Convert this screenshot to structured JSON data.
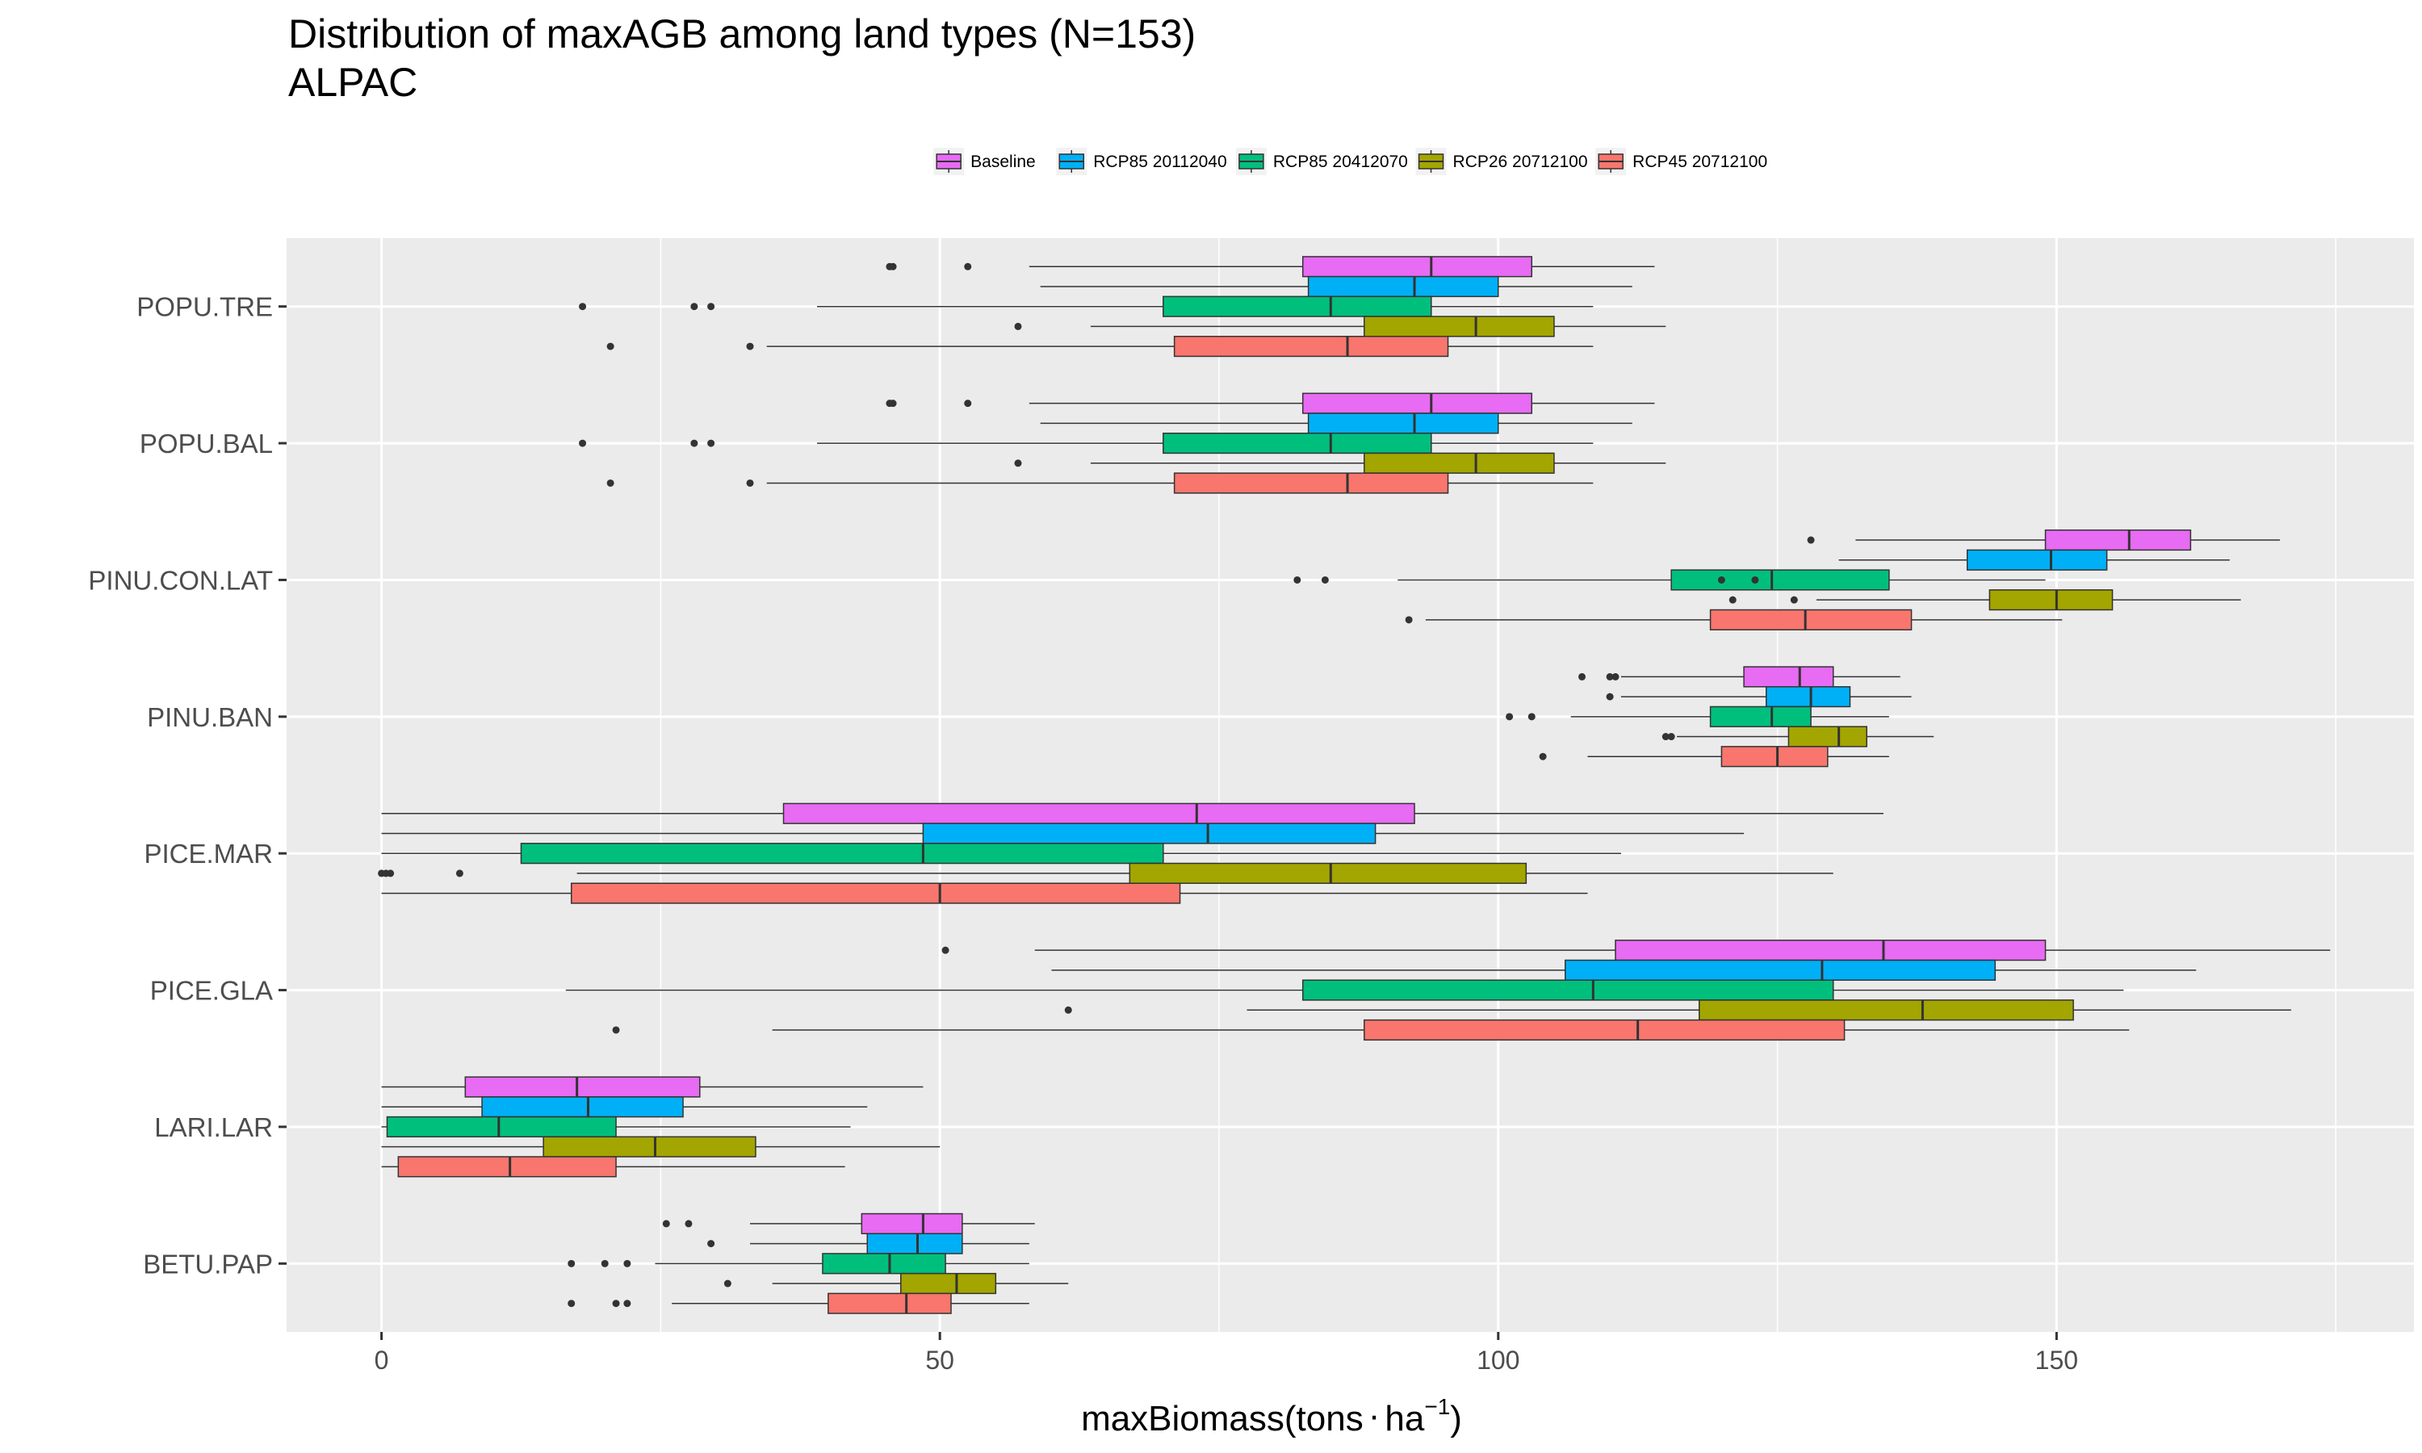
{
  "chart_data": {
    "type": "boxplot",
    "title": "Distribution of maxAGB among land types (N=153)",
    "subtitle": "ALPAC",
    "xlabel": "maxBiomass(tons",
    "xlabel_unit": "ha",
    "xlabel_exp": "−1",
    "xlabel_close": ")",
    "ylabel": "",
    "xlim": [
      -8.5,
      182
    ],
    "xticks": [
      0,
      50,
      100,
      150
    ],
    "grid": true,
    "legend_position": "top",
    "series": [
      {
        "name": "Baseline",
        "color": "#E76BF3"
      },
      {
        "name": "RCP85 20112040",
        "color": "#00B0F6"
      },
      {
        "name": "RCP85 20412070",
        "color": "#00BF7D"
      },
      {
        "name": "RCP26 20712100",
        "color": "#A3A500"
      },
      {
        "name": "RCP45 20712100",
        "color": "#F8766D"
      }
    ],
    "categories": [
      "POPU.TRE",
      "POPU.BAL",
      "PINU.CON.LAT",
      "PINU.BAN",
      "PICE.MAR",
      "PICE.GLA",
      "LARI.LAR",
      "BETU.PAP"
    ],
    "boxes": {
      "POPU.TRE": [
        {
          "wlo": 58.0,
          "q1": 82.5,
          "med": 94.0,
          "q3": 103.0,
          "whi": 114.0,
          "out": [
            45.5,
            45.8,
            52.5
          ]
        },
        {
          "wlo": 59.0,
          "q1": 83.0,
          "med": 92.5,
          "q3": 100.0,
          "whi": 112.0,
          "out": []
        },
        {
          "wlo": 39.0,
          "q1": 70.0,
          "med": 85.0,
          "q3": 94.0,
          "whi": 108.5,
          "out": [
            18.0,
            28.0,
            29.5
          ]
        },
        {
          "wlo": 63.5,
          "q1": 88.0,
          "med": 98.0,
          "q3": 105.0,
          "whi": 115.0,
          "out": [
            57.0
          ]
        },
        {
          "wlo": 34.5,
          "q1": 71.0,
          "med": 86.5,
          "q3": 95.5,
          "whi": 108.5,
          "out": [
            20.5,
            33.0
          ]
        }
      ],
      "POPU.BAL": [
        {
          "wlo": 58.0,
          "q1": 82.5,
          "med": 94.0,
          "q3": 103.0,
          "whi": 114.0,
          "out": [
            45.5,
            45.8,
            52.5
          ]
        },
        {
          "wlo": 59.0,
          "q1": 83.0,
          "med": 92.5,
          "q3": 100.0,
          "whi": 112.0,
          "out": []
        },
        {
          "wlo": 39.0,
          "q1": 70.0,
          "med": 85.0,
          "q3": 94.0,
          "whi": 108.5,
          "out": [
            18.0,
            28.0,
            29.5
          ]
        },
        {
          "wlo": 63.5,
          "q1": 88.0,
          "med": 98.0,
          "q3": 105.0,
          "whi": 115.0,
          "out": [
            57.0
          ]
        },
        {
          "wlo": 34.5,
          "q1": 71.0,
          "med": 86.5,
          "q3": 95.5,
          "whi": 108.5,
          "out": [
            20.5,
            33.0
          ]
        }
      ],
      "PINU.CON.LAT": [
        {
          "wlo": 132.0,
          "q1": 149.0,
          "med": 156.5,
          "q3": 162.0,
          "whi": 170.0,
          "out": [
            128.0
          ]
        },
        {
          "wlo": 130.5,
          "q1": 142.0,
          "med": 149.5,
          "q3": 154.5,
          "whi": 165.5,
          "out": []
        },
        {
          "wlo": 91.0,
          "q1": 115.5,
          "med": 124.5,
          "q3": 135.0,
          "whi": 149.0,
          "out": [
            82.0,
            84.5,
            120.0,
            123.0
          ]
        },
        {
          "wlo": 128.5,
          "q1": 144.0,
          "med": 150.0,
          "q3": 155.0,
          "whi": 166.5,
          "out": [
            121.0,
            126.5
          ]
        },
        {
          "wlo": 93.5,
          "q1": 119.0,
          "med": 127.5,
          "q3": 137.0,
          "whi": 150.5,
          "out": [
            92.0
          ]
        }
      ],
      "PINU.BAN": [
        {
          "wlo": 111.0,
          "q1": 122.0,
          "med": 127.0,
          "q3": 130.0,
          "whi": 136.0,
          "out": [
            107.5,
            110.0,
            110.5
          ]
        },
        {
          "wlo": 111.0,
          "q1": 124.0,
          "med": 128.0,
          "q3": 131.5,
          "whi": 137.0,
          "out": [
            110.0
          ]
        },
        {
          "wlo": 106.5,
          "q1": 119.0,
          "med": 124.5,
          "q3": 128.0,
          "whi": 135.0,
          "out": [
            101.0,
            103.0
          ]
        },
        {
          "wlo": 116.0,
          "q1": 126.0,
          "med": 130.5,
          "q3": 133.0,
          "whi": 139.0,
          "out": [
            115.0,
            115.5
          ]
        },
        {
          "wlo": 108.0,
          "q1": 120.0,
          "med": 125.0,
          "q3": 129.5,
          "whi": 135.0,
          "out": [
            104.0
          ]
        }
      ],
      "PICE.MAR": [
        {
          "wlo": 0.0,
          "q1": 36.0,
          "med": 73.0,
          "q3": 92.5,
          "whi": 134.5,
          "out": []
        },
        {
          "wlo": 0.0,
          "q1": 48.5,
          "med": 74.0,
          "q3": 89.0,
          "whi": 122.0,
          "out": []
        },
        {
          "wlo": 0.0,
          "q1": 12.5,
          "med": 48.5,
          "q3": 70.0,
          "whi": 111.0,
          "out": []
        },
        {
          "wlo": 17.5,
          "q1": 67.0,
          "med": 85.0,
          "q3": 102.5,
          "whi": 130.0,
          "out": [
            0.0,
            0.4,
            0.8,
            7.0
          ]
        },
        {
          "wlo": 0.0,
          "q1": 17.0,
          "med": 50.0,
          "q3": 71.5,
          "whi": 108.0,
          "out": []
        }
      ],
      "PICE.GLA": [
        {
          "wlo": 58.5,
          "q1": 110.5,
          "med": 134.5,
          "q3": 149.0,
          "whi": 174.5,
          "out": [
            50.5
          ]
        },
        {
          "wlo": 60.0,
          "q1": 106.0,
          "med": 129.0,
          "q3": 144.5,
          "whi": 162.5,
          "out": []
        },
        {
          "wlo": 16.5,
          "q1": 82.5,
          "med": 108.5,
          "q3": 130.0,
          "whi": 156.0,
          "out": []
        },
        {
          "wlo": 77.5,
          "q1": 118.0,
          "med": 138.0,
          "q3": 151.5,
          "whi": 171.0,
          "out": [
            61.5
          ]
        },
        {
          "wlo": 35.0,
          "q1": 88.0,
          "med": 112.5,
          "q3": 131.0,
          "whi": 156.5,
          "out": [
            21.0
          ]
        }
      ],
      "LARI.LAR": [
        {
          "wlo": 0.0,
          "q1": 7.5,
          "med": 17.5,
          "q3": 28.5,
          "whi": 48.5,
          "out": []
        },
        {
          "wlo": 0.0,
          "q1": 9.0,
          "med": 18.5,
          "q3": 27.0,
          "whi": 43.5,
          "out": []
        },
        {
          "wlo": 0.0,
          "q1": 0.5,
          "med": 10.5,
          "q3": 21.0,
          "whi": 42.0,
          "out": []
        },
        {
          "wlo": 0.0,
          "q1": 14.5,
          "med": 24.5,
          "q3": 33.5,
          "whi": 50.0,
          "out": []
        },
        {
          "wlo": 0.0,
          "q1": 1.5,
          "med": 11.5,
          "q3": 21.0,
          "whi": 41.5,
          "out": []
        }
      ],
      "BETU.PAP": [
        {
          "wlo": 33.0,
          "q1": 43.0,
          "med": 48.5,
          "q3": 52.0,
          "whi": 58.5,
          "out": [
            25.5,
            27.5
          ]
        },
        {
          "wlo": 33.0,
          "q1": 43.5,
          "med": 48.0,
          "q3": 52.0,
          "whi": 58.0,
          "out": [
            29.5
          ]
        },
        {
          "wlo": 24.5,
          "q1": 39.5,
          "med": 45.5,
          "q3": 50.5,
          "whi": 58.0,
          "out": [
            17.0,
            20.0,
            22.0
          ]
        },
        {
          "wlo": 35.0,
          "q1": 46.5,
          "med": 51.5,
          "q3": 55.0,
          "whi": 61.5,
          "out": [
            31.0
          ]
        },
        {
          "wlo": 26.0,
          "q1": 40.0,
          "med": 47.0,
          "q3": 51.0,
          "whi": 58.0,
          "out": [
            17.0,
            21.0,
            22.0
          ]
        }
      ]
    }
  }
}
